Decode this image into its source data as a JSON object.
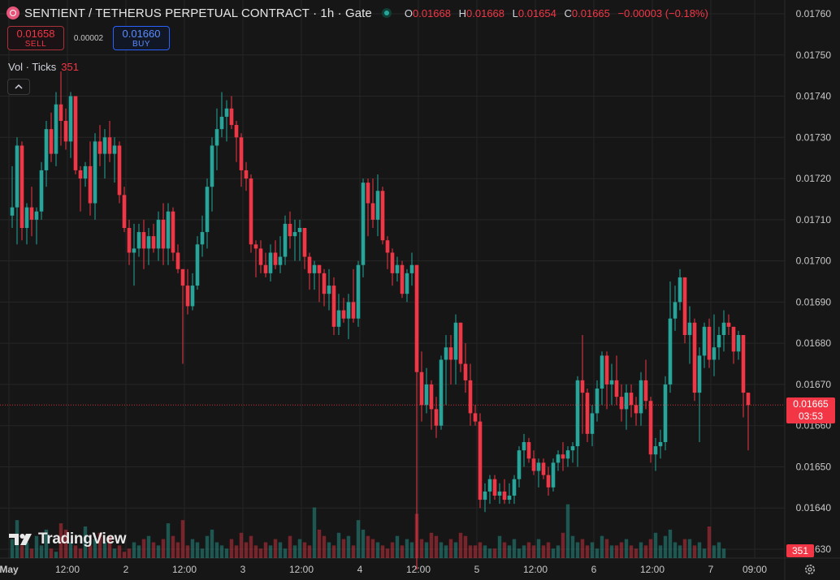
{
  "header": {
    "title": "SENTIENT / TETHERUS PERPETUAL CONTRACT · 1h · Gate",
    "ohlc": {
      "o_label": "O",
      "o_value": "0.01668",
      "h_label": "H",
      "h_value": "0.01668",
      "l_label": "L",
      "l_value": "0.01654",
      "c_label": "C",
      "c_value": "0.01665",
      "change": "−0.00003 (−0.18%)"
    }
  },
  "trade": {
    "sell_price": "0.01658",
    "sell_label": "SELL",
    "spread": "0.00002",
    "buy_price": "0.01660",
    "buy_label": "BUY"
  },
  "volume_indicator": {
    "label": "Vol · Ticks",
    "value": "351"
  },
  "price_tag": {
    "price": "0.01665",
    "countdown": "03:53"
  },
  "volume_tag": "351",
  "logo_text": "TradingView",
  "colors": {
    "up": "#26a69a",
    "down": "#f23645",
    "background": "#161616",
    "grid": "#262626"
  },
  "icons": {
    "symbol": "sentient-logo-icon",
    "status": "market-open-icon",
    "collapse": "chevron-up-icon",
    "settings": "gear-icon",
    "brand": "tradingview-logo-icon"
  },
  "chart_data": {
    "type": "candlestick",
    "ylim": [
      0.01627,
      0.01763
    ],
    "y_ticks": [
      "0.01760",
      "0.01750",
      "0.01740",
      "0.01730",
      "0.01720",
      "0.01710",
      "0.01700",
      "0.01690",
      "0.01680",
      "0.01670",
      "0.01660",
      "0.01650",
      "0.01640",
      "0.01630"
    ],
    "x_ticks": [
      {
        "label": "May",
        "index": -1
      },
      {
        "label": "12:00",
        "index": 11
      },
      {
        "label": "2",
        "index": 23
      },
      {
        "label": "12:00",
        "index": 35
      },
      {
        "label": "3",
        "index": 47
      },
      {
        "label": "12:00",
        "index": 59
      },
      {
        "label": "4",
        "index": 71
      },
      {
        "label": "12:00",
        "index": 83
      },
      {
        "label": "5",
        "index": 95
      },
      {
        "label": "12:00",
        "index": 107
      },
      {
        "label": "6",
        "index": 119
      },
      {
        "label": "12:00",
        "index": 131
      },
      {
        "label": "7",
        "index": 143
      },
      {
        "label": "09:00",
        "index": 152
      }
    ],
    "last_price": 0.01665,
    "series": [
      {
        "o": 0.01711,
        "h": 0.01723,
        "l": 0.01708,
        "c": 0.01713
      },
      {
        "o": 0.01713,
        "h": 0.0173,
        "l": 0.01704,
        "c": 0.01728
      },
      {
        "o": 0.01728,
        "h": 0.01729,
        "l": 0.01705,
        "c": 0.01708
      },
      {
        "o": 0.01708,
        "h": 0.01714,
        "l": 0.01704,
        "c": 0.01713
      },
      {
        "o": 0.01713,
        "h": 0.01718,
        "l": 0.01706,
        "c": 0.0171
      },
      {
        "o": 0.0171,
        "h": 0.01713,
        "l": 0.01704,
        "c": 0.01712
      },
      {
        "o": 0.01712,
        "h": 0.01724,
        "l": 0.0171,
        "c": 0.01722
      },
      {
        "o": 0.01722,
        "h": 0.01734,
        "l": 0.01718,
        "c": 0.01732
      },
      {
        "o": 0.01732,
        "h": 0.01736,
        "l": 0.01724,
        "c": 0.01726
      },
      {
        "o": 0.01726,
        "h": 0.01741,
        "l": 0.01723,
        "c": 0.01738
      },
      {
        "o": 0.01738,
        "h": 0.01746,
        "l": 0.01728,
        "c": 0.01734
      },
      {
        "o": 0.01734,
        "h": 0.01737,
        "l": 0.01727,
        "c": 0.01729
      },
      {
        "o": 0.01729,
        "h": 0.01741,
        "l": 0.01725,
        "c": 0.0174
      },
      {
        "o": 0.0174,
        "h": 0.0174,
        "l": 0.01721,
        "c": 0.01722
      },
      {
        "o": 0.01722,
        "h": 0.01723,
        "l": 0.01712,
        "c": 0.0172
      },
      {
        "o": 0.0172,
        "h": 0.01724,
        "l": 0.01718,
        "c": 0.01723
      },
      {
        "o": 0.01723,
        "h": 0.01729,
        "l": 0.01711,
        "c": 0.01714
      },
      {
        "o": 0.01714,
        "h": 0.01731,
        "l": 0.0171,
        "c": 0.01729
      },
      {
        "o": 0.01729,
        "h": 0.01733,
        "l": 0.01723,
        "c": 0.01726
      },
      {
        "o": 0.01726,
        "h": 0.01732,
        "l": 0.0172,
        "c": 0.0173
      },
      {
        "o": 0.0173,
        "h": 0.01734,
        "l": 0.01724,
        "c": 0.01726
      },
      {
        "o": 0.01726,
        "h": 0.0173,
        "l": 0.01719,
        "c": 0.01728
      },
      {
        "o": 0.01728,
        "h": 0.01729,
        "l": 0.01714,
        "c": 0.01716
      },
      {
        "o": 0.01716,
        "h": 0.01718,
        "l": 0.01707,
        "c": 0.01708
      },
      {
        "o": 0.01708,
        "h": 0.0171,
        "l": 0.01699,
        "c": 0.01702
      },
      {
        "o": 0.01702,
        "h": 0.01709,
        "l": 0.01694,
        "c": 0.01703
      },
      {
        "o": 0.01703,
        "h": 0.01709,
        "l": 0.01701,
        "c": 0.01707
      },
      {
        "o": 0.01707,
        "h": 0.0171,
        "l": 0.01698,
        "c": 0.01703
      },
      {
        "o": 0.01703,
        "h": 0.01708,
        "l": 0.01699,
        "c": 0.01706
      },
      {
        "o": 0.01706,
        "h": 0.01709,
        "l": 0.01702,
        "c": 0.01703
      },
      {
        "o": 0.01703,
        "h": 0.01712,
        "l": 0.017,
        "c": 0.0171
      },
      {
        "o": 0.0171,
        "h": 0.01714,
        "l": 0.01699,
        "c": 0.01703
      },
      {
        "o": 0.01703,
        "h": 0.01714,
        "l": 0.01699,
        "c": 0.01712
      },
      {
        "o": 0.01712,
        "h": 0.01713,
        "l": 0.017,
        "c": 0.01702
      },
      {
        "o": 0.01702,
        "h": 0.01704,
        "l": 0.01697,
        "c": 0.01698
      },
      {
        "o": 0.01698,
        "h": 0.01698,
        "l": 0.01675,
        "c": 0.01694
      },
      {
        "o": 0.01694,
        "h": 0.01698,
        "l": 0.01687,
        "c": 0.01689
      },
      {
        "o": 0.01689,
        "h": 0.01697,
        "l": 0.01688,
        "c": 0.01694
      },
      {
        "o": 0.01694,
        "h": 0.01706,
        "l": 0.01693,
        "c": 0.01704
      },
      {
        "o": 0.01704,
        "h": 0.01711,
        "l": 0.01701,
        "c": 0.01707
      },
      {
        "o": 0.01707,
        "h": 0.0172,
        "l": 0.01703,
        "c": 0.01718
      },
      {
        "o": 0.01718,
        "h": 0.0173,
        "l": 0.01712,
        "c": 0.01728
      },
      {
        "o": 0.01728,
        "h": 0.01737,
        "l": 0.01722,
        "c": 0.01732
      },
      {
        "o": 0.01732,
        "h": 0.01741,
        "l": 0.0173,
        "c": 0.01735
      },
      {
        "o": 0.01735,
        "h": 0.01739,
        "l": 0.01729,
        "c": 0.01737
      },
      {
        "o": 0.01737,
        "h": 0.0174,
        "l": 0.01732,
        "c": 0.01733
      },
      {
        "o": 0.01733,
        "h": 0.01734,
        "l": 0.01724,
        "c": 0.0173
      },
      {
        "o": 0.0173,
        "h": 0.01731,
        "l": 0.01718,
        "c": 0.01722
      },
      {
        "o": 0.01722,
        "h": 0.01724,
        "l": 0.01717,
        "c": 0.0172
      },
      {
        "o": 0.0172,
        "h": 0.01721,
        "l": 0.01702,
        "c": 0.01704
      },
      {
        "o": 0.01704,
        "h": 0.01705,
        "l": 0.01696,
        "c": 0.01703
      },
      {
        "o": 0.01703,
        "h": 0.01705,
        "l": 0.01697,
        "c": 0.01699
      },
      {
        "o": 0.01699,
        "h": 0.01702,
        "l": 0.01696,
        "c": 0.01697
      },
      {
        "o": 0.01697,
        "h": 0.01704,
        "l": 0.01695,
        "c": 0.01702
      },
      {
        "o": 0.01702,
        "h": 0.01705,
        "l": 0.01698,
        "c": 0.01699
      },
      {
        "o": 0.01699,
        "h": 0.01706,
        "l": 0.01697,
        "c": 0.01701
      },
      {
        "o": 0.01701,
        "h": 0.01711,
        "l": 0.01699,
        "c": 0.01709
      },
      {
        "o": 0.01709,
        "h": 0.01712,
        "l": 0.01703,
        "c": 0.01706
      },
      {
        "o": 0.01706,
        "h": 0.0171,
        "l": 0.017,
        "c": 0.01707
      },
      {
        "o": 0.01707,
        "h": 0.0171,
        "l": 0.017,
        "c": 0.01708
      },
      {
        "o": 0.01708,
        "h": 0.01708,
        "l": 0.01698,
        "c": 0.01701
      },
      {
        "o": 0.01701,
        "h": 0.01702,
        "l": 0.01693,
        "c": 0.01697
      },
      {
        "o": 0.01697,
        "h": 0.017,
        "l": 0.01693,
        "c": 0.01699
      },
      {
        "o": 0.01699,
        "h": 0.01699,
        "l": 0.0169,
        "c": 0.01697
      },
      {
        "o": 0.01697,
        "h": 0.01698,
        "l": 0.01689,
        "c": 0.01692
      },
      {
        "o": 0.01692,
        "h": 0.01698,
        "l": 0.01688,
        "c": 0.01694
      },
      {
        "o": 0.01694,
        "h": 0.01696,
        "l": 0.01682,
        "c": 0.01684
      },
      {
        "o": 0.01684,
        "h": 0.01692,
        "l": 0.01682,
        "c": 0.01688
      },
      {
        "o": 0.01688,
        "h": 0.01691,
        "l": 0.01685,
        "c": 0.01686
      },
      {
        "o": 0.01686,
        "h": 0.01692,
        "l": 0.01681,
        "c": 0.0169
      },
      {
        "o": 0.0169,
        "h": 0.01698,
        "l": 0.01685,
        "c": 0.01686
      },
      {
        "o": 0.01686,
        "h": 0.017,
        "l": 0.01684,
        "c": 0.01699
      },
      {
        "o": 0.01699,
        "h": 0.0172,
        "l": 0.01696,
        "c": 0.01719
      },
      {
        "o": 0.01719,
        "h": 0.0172,
        "l": 0.01706,
        "c": 0.01714
      },
      {
        "o": 0.01714,
        "h": 0.0172,
        "l": 0.01708,
        "c": 0.0171
      },
      {
        "o": 0.0171,
        "h": 0.01721,
        "l": 0.01706,
        "c": 0.01717
      },
      {
        "o": 0.01717,
        "h": 0.01718,
        "l": 0.01704,
        "c": 0.01705
      },
      {
        "o": 0.01705,
        "h": 0.01706,
        "l": 0.01698,
        "c": 0.01702
      },
      {
        "o": 0.01702,
        "h": 0.01703,
        "l": 0.01694,
        "c": 0.01697
      },
      {
        "o": 0.01697,
        "h": 0.01701,
        "l": 0.01695,
        "c": 0.01699
      },
      {
        "o": 0.01699,
        "h": 0.017,
        "l": 0.01691,
        "c": 0.01692
      },
      {
        "o": 0.01692,
        "h": 0.01698,
        "l": 0.0169,
        "c": 0.01697
      },
      {
        "o": 0.01697,
        "h": 0.01702,
        "l": 0.01694,
        "c": 0.01699
      },
      {
        "o": 0.01699,
        "h": 0.01699,
        "l": 0.01625,
        "c": 0.01673
      },
      {
        "o": 0.01673,
        "h": 0.01678,
        "l": 0.01661,
        "c": 0.01665
      },
      {
        "o": 0.01665,
        "h": 0.01674,
        "l": 0.01663,
        "c": 0.0167
      },
      {
        "o": 0.0167,
        "h": 0.01671,
        "l": 0.01659,
        "c": 0.01664
      },
      {
        "o": 0.01664,
        "h": 0.01667,
        "l": 0.01657,
        "c": 0.0166
      },
      {
        "o": 0.0166,
        "h": 0.01677,
        "l": 0.01659,
        "c": 0.01676
      },
      {
        "o": 0.01676,
        "h": 0.01682,
        "l": 0.01665,
        "c": 0.01679
      },
      {
        "o": 0.01679,
        "h": 0.01682,
        "l": 0.0167,
        "c": 0.01676
      },
      {
        "o": 0.01676,
        "h": 0.01687,
        "l": 0.0167,
        "c": 0.01685
      },
      {
        "o": 0.01685,
        "h": 0.01685,
        "l": 0.01673,
        "c": 0.01675
      },
      {
        "o": 0.01675,
        "h": 0.0168,
        "l": 0.01668,
        "c": 0.01671
      },
      {
        "o": 0.01671,
        "h": 0.01675,
        "l": 0.0166,
        "c": 0.01663
      },
      {
        "o": 0.01663,
        "h": 0.01665,
        "l": 0.0166,
        "c": 0.01661
      },
      {
        "o": 0.01661,
        "h": 0.01663,
        "l": 0.0164,
        "c": 0.01642
      },
      {
        "o": 0.01642,
        "h": 0.01646,
        "l": 0.01639,
        "c": 0.01644
      },
      {
        "o": 0.01644,
        "h": 0.01648,
        "l": 0.01641,
        "c": 0.01647
      },
      {
        "o": 0.01647,
        "h": 0.01648,
        "l": 0.01642,
        "c": 0.01643
      },
      {
        "o": 0.01643,
        "h": 0.01646,
        "l": 0.01641,
        "c": 0.01644
      },
      {
        "o": 0.01644,
        "h": 0.01647,
        "l": 0.01641,
        "c": 0.01642
      },
      {
        "o": 0.01642,
        "h": 0.01646,
        "l": 0.01641,
        "c": 0.01643
      },
      {
        "o": 0.01643,
        "h": 0.01648,
        "l": 0.01641,
        "c": 0.01647
      },
      {
        "o": 0.01647,
        "h": 0.01655,
        "l": 0.01645,
        "c": 0.01654
      },
      {
        "o": 0.01654,
        "h": 0.01658,
        "l": 0.0165,
        "c": 0.01656
      },
      {
        "o": 0.01656,
        "h": 0.01657,
        "l": 0.01651,
        "c": 0.01652
      },
      {
        "o": 0.01652,
        "h": 0.01654,
        "l": 0.01648,
        "c": 0.01649
      },
      {
        "o": 0.01649,
        "h": 0.01652,
        "l": 0.01645,
        "c": 0.01651
      },
      {
        "o": 0.01651,
        "h": 0.01652,
        "l": 0.01647,
        "c": 0.01648
      },
      {
        "o": 0.01648,
        "h": 0.0165,
        "l": 0.01643,
        "c": 0.01645
      },
      {
        "o": 0.01645,
        "h": 0.01652,
        "l": 0.01644,
        "c": 0.01651
      },
      {
        "o": 0.01651,
        "h": 0.01654,
        "l": 0.01649,
        "c": 0.01653
      },
      {
        "o": 0.01653,
        "h": 0.01656,
        "l": 0.01649,
        "c": 0.01652
      },
      {
        "o": 0.01652,
        "h": 0.01655,
        "l": 0.0165,
        "c": 0.01654
      },
      {
        "o": 0.01654,
        "h": 0.01656,
        "l": 0.01651,
        "c": 0.01655
      },
      {
        "o": 0.01655,
        "h": 0.01672,
        "l": 0.0165,
        "c": 0.01671
      },
      {
        "o": 0.01671,
        "h": 0.01682,
        "l": 0.01658,
        "c": 0.01668
      },
      {
        "o": 0.01668,
        "h": 0.01669,
        "l": 0.01656,
        "c": 0.01658
      },
      {
        "o": 0.01658,
        "h": 0.01665,
        "l": 0.01655,
        "c": 0.01663
      },
      {
        "o": 0.01663,
        "h": 0.01671,
        "l": 0.01661,
        "c": 0.01669
      },
      {
        "o": 0.01669,
        "h": 0.01678,
        "l": 0.01665,
        "c": 0.01677
      },
      {
        "o": 0.01677,
        "h": 0.01678,
        "l": 0.01664,
        "c": 0.0167
      },
      {
        "o": 0.0167,
        "h": 0.01675,
        "l": 0.01665,
        "c": 0.01671
      },
      {
        "o": 0.01671,
        "h": 0.01677,
        "l": 0.01665,
        "c": 0.01667
      },
      {
        "o": 0.01667,
        "h": 0.0167,
        "l": 0.01661,
        "c": 0.01664
      },
      {
        "o": 0.01664,
        "h": 0.0167,
        "l": 0.01659,
        "c": 0.01668
      },
      {
        "o": 0.01668,
        "h": 0.0167,
        "l": 0.01662,
        "c": 0.01665
      },
      {
        "o": 0.01665,
        "h": 0.01667,
        "l": 0.0166,
        "c": 0.01663
      },
      {
        "o": 0.01663,
        "h": 0.01673,
        "l": 0.0166,
        "c": 0.01671
      },
      {
        "o": 0.01671,
        "h": 0.01676,
        "l": 0.01664,
        "c": 0.01666
      },
      {
        "o": 0.01666,
        "h": 0.01667,
        "l": 0.01651,
        "c": 0.01653
      },
      {
        "o": 0.01653,
        "h": 0.01657,
        "l": 0.01649,
        "c": 0.01655
      },
      {
        "o": 0.01655,
        "h": 0.01659,
        "l": 0.01652,
        "c": 0.01656
      },
      {
        "o": 0.01656,
        "h": 0.01672,
        "l": 0.01654,
        "c": 0.0167
      },
      {
        "o": 0.0167,
        "h": 0.01695,
        "l": 0.01668,
        "c": 0.01686
      },
      {
        "o": 0.01686,
        "h": 0.01694,
        "l": 0.01683,
        "c": 0.0169
      },
      {
        "o": 0.0169,
        "h": 0.01698,
        "l": 0.01688,
        "c": 0.01696
      },
      {
        "o": 0.01696,
        "h": 0.01696,
        "l": 0.0168,
        "c": 0.01682
      },
      {
        "o": 0.01682,
        "h": 0.01689,
        "l": 0.01675,
        "c": 0.01685
      },
      {
        "o": 0.01685,
        "h": 0.01686,
        "l": 0.01666,
        "c": 0.01668
      },
      {
        "o": 0.01668,
        "h": 0.01679,
        "l": 0.01656,
        "c": 0.01677
      },
      {
        "o": 0.01677,
        "h": 0.01685,
        "l": 0.01674,
        "c": 0.01684
      },
      {
        "o": 0.01684,
        "h": 0.01686,
        "l": 0.01674,
        "c": 0.01676
      },
      {
        "o": 0.01676,
        "h": 0.01687,
        "l": 0.01672,
        "c": 0.01679
      },
      {
        "o": 0.01679,
        "h": 0.01684,
        "l": 0.01676,
        "c": 0.01682
      },
      {
        "o": 0.01682,
        "h": 0.01688,
        "l": 0.01678,
        "c": 0.01685
      },
      {
        "o": 0.01685,
        "h": 0.01687,
        "l": 0.01682,
        "c": 0.01684
      },
      {
        "o": 0.01684,
        "h": 0.01683,
        "l": 0.01675,
        "c": 0.01678
      },
      {
        "o": 0.01678,
        "h": 0.01683,
        "l": 0.01676,
        "c": 0.01682
      },
      {
        "o": 0.01682,
        "h": 0.01682,
        "l": 0.01662,
        "c": 0.01668
      },
      {
        "o": 0.01668,
        "h": 0.01668,
        "l": 0.01654,
        "c": 0.01665
      }
    ],
    "volume": [
      30,
      60,
      20,
      25,
      15,
      35,
      20,
      45,
      15,
      10,
      55,
      45,
      25,
      20,
      15,
      50,
      20,
      30,
      40,
      25,
      35,
      15,
      20,
      10,
      15,
      25,
      20,
      30,
      35,
      25,
      20,
      30,
      55,
      35,
      25,
      60,
      20,
      30,
      25,
      15,
      35,
      45,
      25,
      20,
      15,
      30,
      20,
      40,
      25,
      35,
      20,
      15,
      25,
      20,
      30,
      25,
      15,
      35,
      20,
      30,
      25,
      20,
      80,
      45,
      35,
      25,
      20,
      40,
      30,
      35,
      20,
      60,
      45,
      35,
      30,
      25,
      20,
      15,
      25,
      35,
      20,
      30,
      25,
      70,
      30,
      25,
      40,
      35,
      25,
      20,
      30,
      25,
      40,
      35,
      20,
      20,
      25,
      20,
      15,
      15,
      35,
      25,
      20,
      30,
      15,
      20,
      25,
      20,
      30,
      20,
      25,
      15,
      20,
      40,
      85,
      35,
      25,
      30,
      20,
      25,
      15,
      35,
      30,
      20,
      20,
      25,
      30,
      20,
      15,
      25,
      20,
      30,
      40,
      20,
      35,
      45,
      25,
      20,
      30,
      30,
      20,
      25,
      15,
      50,
      20,
      25,
      15
    ]
  }
}
